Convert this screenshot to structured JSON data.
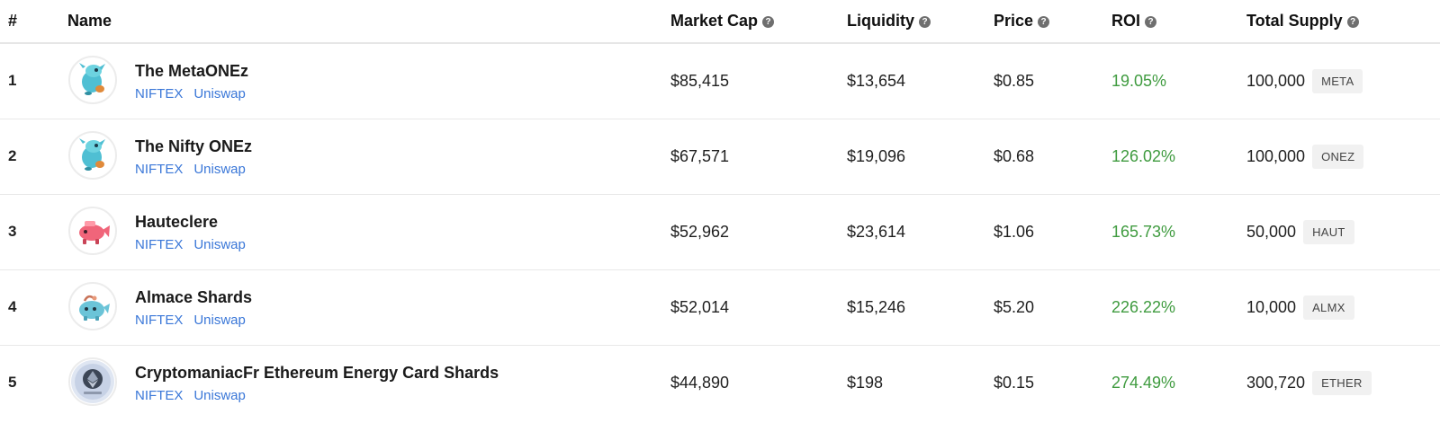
{
  "header": {
    "rank": "#",
    "name": "Name",
    "market_cap": "Market Cap",
    "liquidity": "Liquidity",
    "price": "Price",
    "roi": "ROI",
    "total_supply": "Total Supply",
    "help_glyph": "?"
  },
  "colors": {
    "roi_positive": "#3f9b3f",
    "link": "#3a77d8"
  },
  "rows": [
    {
      "rank": "1",
      "name": "The MetaONEz",
      "link1": "NIFTEX",
      "link2": "Uniswap",
      "market_cap": "$85,415",
      "liquidity": "$13,654",
      "price": "$0.85",
      "roi": "19.05%",
      "supply": "100,000",
      "symbol": "META",
      "icon": "blue-creature-icon"
    },
    {
      "rank": "2",
      "name": "The Nifty ONEz",
      "link1": "NIFTEX",
      "link2": "Uniswap",
      "market_cap": "$67,571",
      "liquidity": "$19,096",
      "price": "$0.68",
      "roi": "126.02%",
      "supply": "100,000",
      "symbol": "ONEZ",
      "icon": "blue-creature-icon"
    },
    {
      "rank": "3",
      "name": "Hauteclere",
      "link1": "NIFTEX",
      "link2": "Uniswap",
      "market_cap": "$52,962",
      "liquidity": "$23,614",
      "price": "$1.06",
      "roi": "165.73%",
      "supply": "50,000",
      "symbol": "HAUT",
      "icon": "pink-axie-icon"
    },
    {
      "rank": "4",
      "name": "Almace Shards",
      "link1": "NIFTEX",
      "link2": "Uniswap",
      "market_cap": "$52,014",
      "liquidity": "$15,246",
      "price": "$5.20",
      "roi": "226.22%",
      "supply": "10,000",
      "symbol": "ALMX",
      "icon": "blue-axie-icon"
    },
    {
      "rank": "5",
      "name": "CryptomaniacFr Ethereum Energy Card Shards",
      "link1": "NIFTEX",
      "link2": "Uniswap",
      "market_cap": "$44,890",
      "liquidity": "$198",
      "price": "$0.15",
      "roi": "274.49%",
      "supply": "300,720",
      "symbol": "ETHER",
      "icon": "ethereum-card-icon"
    }
  ]
}
